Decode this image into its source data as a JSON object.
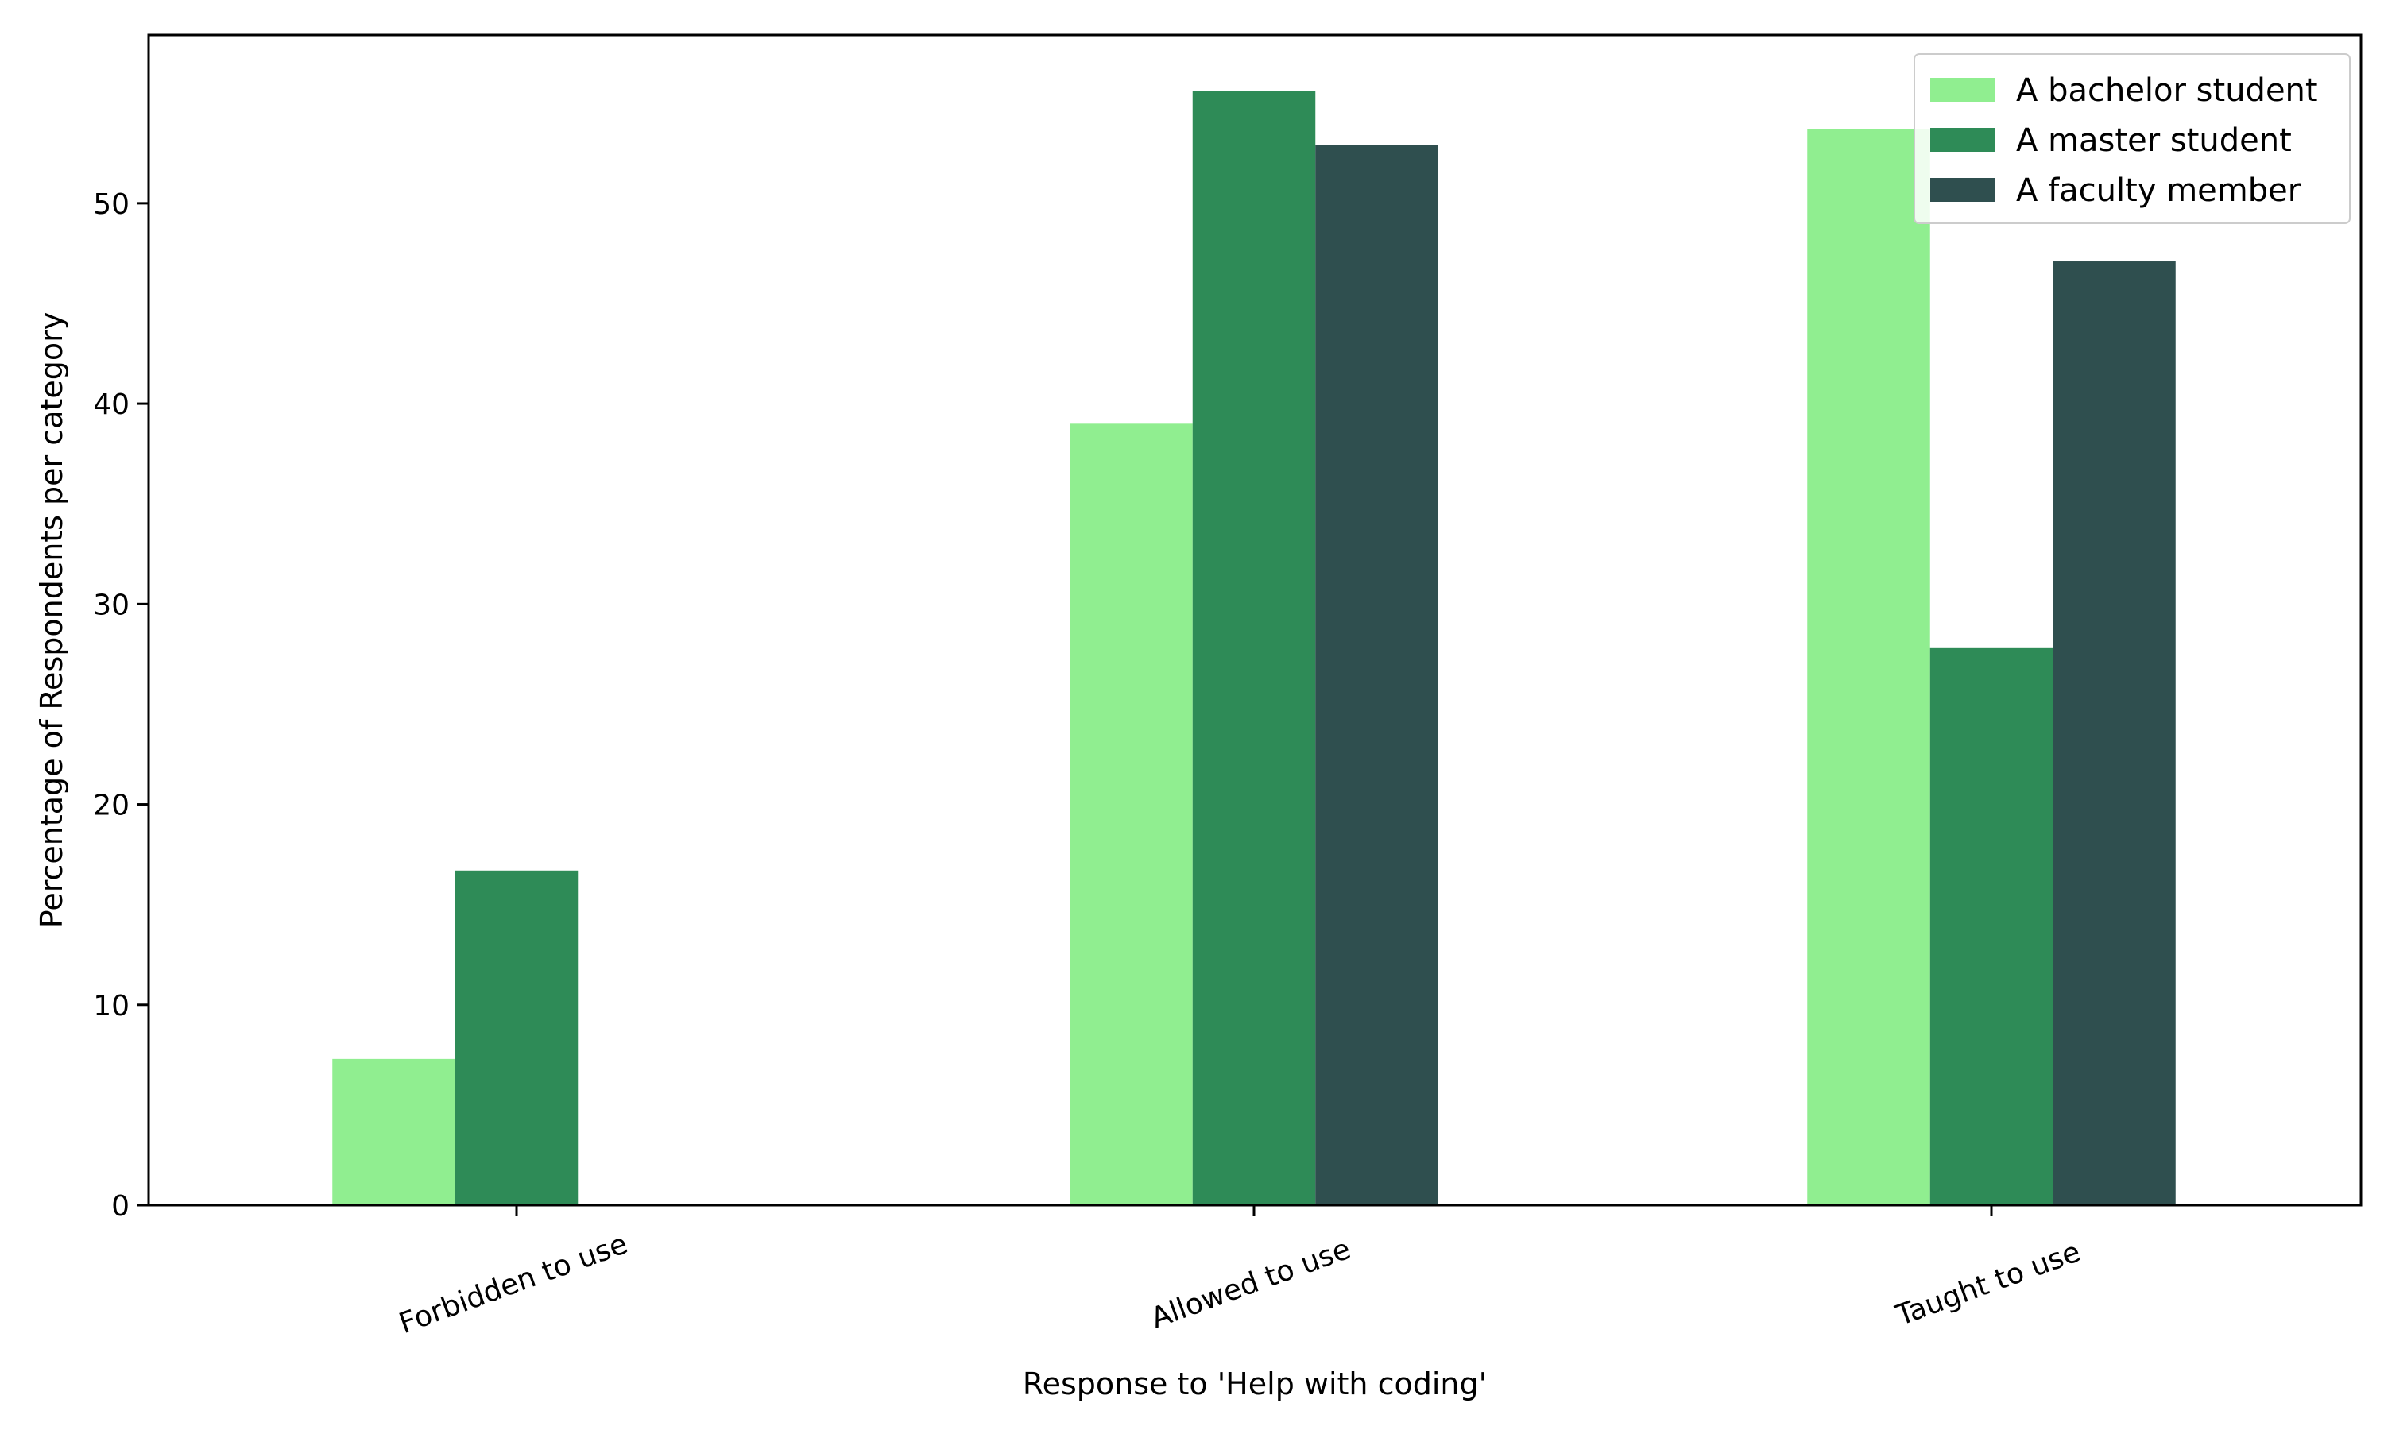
{
  "chart_data": {
    "type": "bar",
    "categories": [
      "Forbidden to use",
      "Allowed to use",
      "Taught to use"
    ],
    "series": [
      {
        "name": "A bachelor student",
        "color": "#90ee90",
        "values": [
          7.3,
          39.0,
          53.7
        ]
      },
      {
        "name": "A master student",
        "color": "#2e8b57",
        "values": [
          16.7,
          55.6,
          27.8
        ]
      },
      {
        "name": "A faculty member",
        "color": "#2f4f4f",
        "values": [
          0.0,
          52.9,
          47.1
        ]
      }
    ],
    "title": "",
    "xlabel": "Response to 'Help with coding'",
    "ylabel": "Percentage of Respondents per category",
    "ylim": [
      0,
      58.4
    ],
    "yticks": [
      0,
      10,
      20,
      30,
      40,
      50
    ],
    "grid": false,
    "legend": "top-right"
  }
}
